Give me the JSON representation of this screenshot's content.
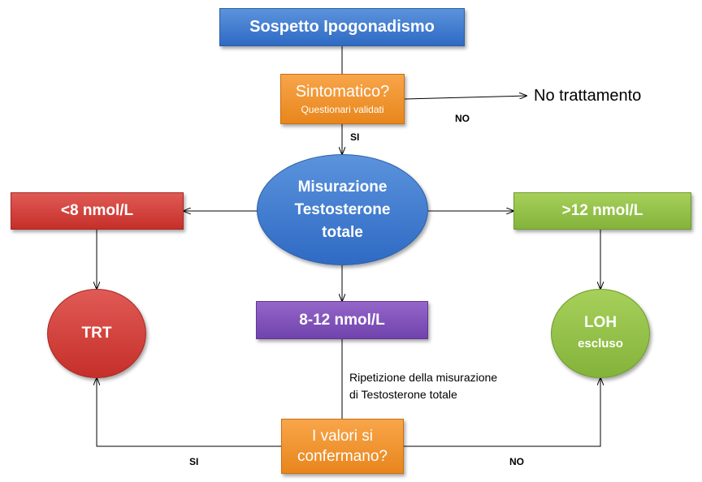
{
  "nodes": {
    "suspect": "Sospetto Ipogonadismo",
    "symptomatic_title": "Sintomatico?",
    "symptomatic_sub": "Questionari validati",
    "no_treatment": "No trattamento",
    "measure_line1": "Misurazione",
    "measure_line2": "Testosterone",
    "measure_line3": "totale",
    "low": "<8 nmol/L",
    "high": ">12 nmol/L",
    "mid": "8-12 nmol/L",
    "trt": "TRT",
    "loh_line1": "LOH",
    "loh_line2": "escluso",
    "confirm_line1": "I valori si",
    "confirm_line2": "confermano?"
  },
  "edge_labels": {
    "no_top": "NO",
    "si_top": "SI",
    "si_bottom": "SI",
    "no_bottom": "NO",
    "repeat_line1": "Ripetizione della misurazione",
    "repeat_line2": "di Testosterone totale"
  }
}
